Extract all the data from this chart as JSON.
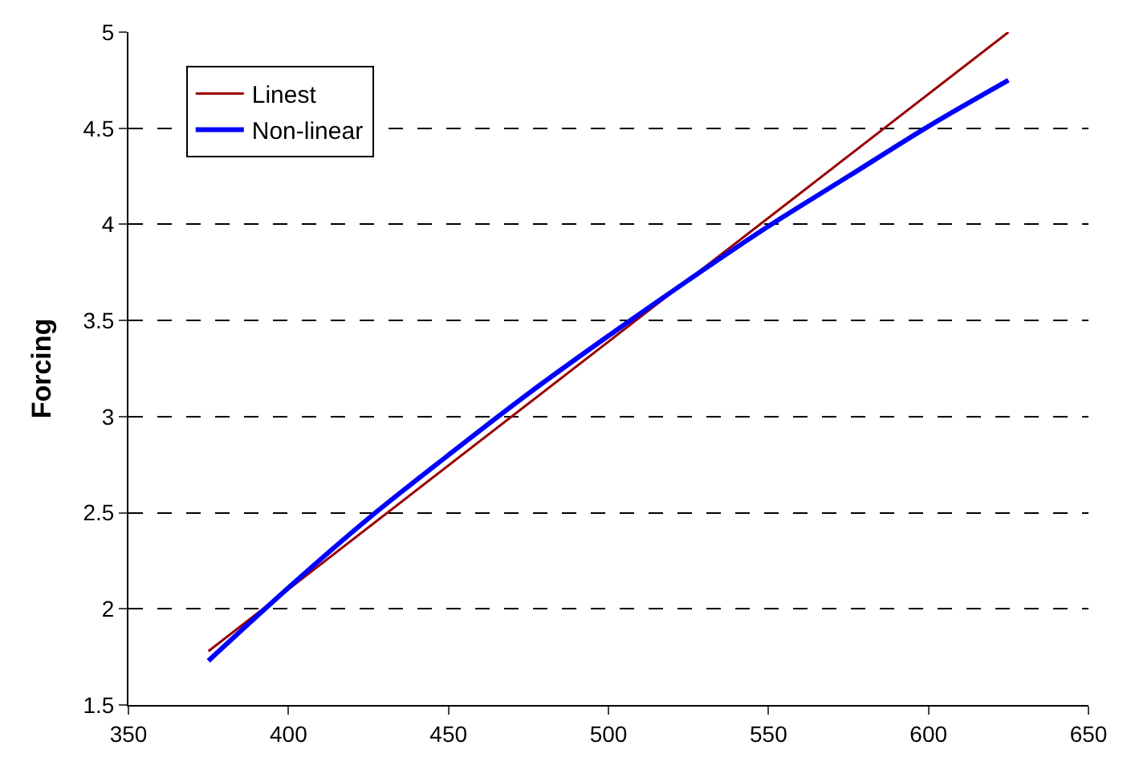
{
  "chart_data": {
    "type": "line",
    "ylabel": "Forcing",
    "xlim": [
      350,
      650
    ],
    "xticks": [
      350,
      400,
      450,
      500,
      550,
      600,
      650
    ],
    "ylim": [
      1.5,
      5
    ],
    "yticks": [
      1.5,
      2,
      2.5,
      3,
      3.5,
      4,
      4.5,
      5
    ],
    "grid": "y",
    "legend": "top left",
    "marker": "none",
    "series": [
      {
        "name": "Linest",
        "color": "#990000",
        "x": [
          375,
          625
        ],
        "values": [
          1.78,
          5.0
        ]
      },
      {
        "name": "Non-linear",
        "color": "#0000ff",
        "x": [
          375,
          400,
          425,
          450,
          475,
          500,
          525,
          550,
          575,
          600,
          625
        ],
        "values": [
          1.73,
          2.11,
          2.47,
          2.8,
          3.12,
          3.42,
          3.71,
          3.99,
          4.25,
          4.51,
          4.75
        ]
      }
    ]
  }
}
